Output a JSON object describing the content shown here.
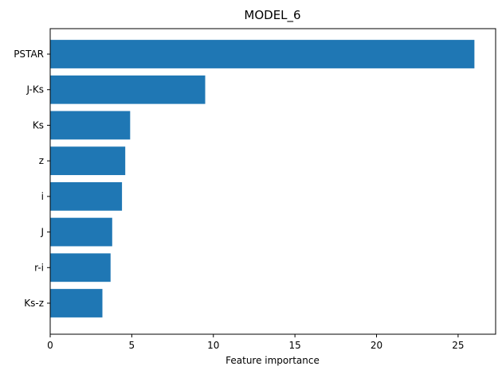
{
  "chart_data": {
    "type": "bar",
    "orientation": "horizontal",
    "title": "MODEL_6",
    "xlabel": "Feature importance",
    "ylabel": "",
    "categories": [
      "PSTAR",
      "J-Ks",
      "Ks",
      "z",
      "i",
      "J",
      "r-i",
      "Ks-z"
    ],
    "values": [
      26.0,
      9.5,
      4.9,
      4.6,
      4.4,
      3.8,
      3.7,
      3.2
    ],
    "xlim": [
      0,
      27.3
    ],
    "xticks": [
      0,
      5,
      10,
      15,
      20,
      25
    ],
    "grid": false,
    "legend": "none",
    "bar_color": "#1f77b4"
  }
}
